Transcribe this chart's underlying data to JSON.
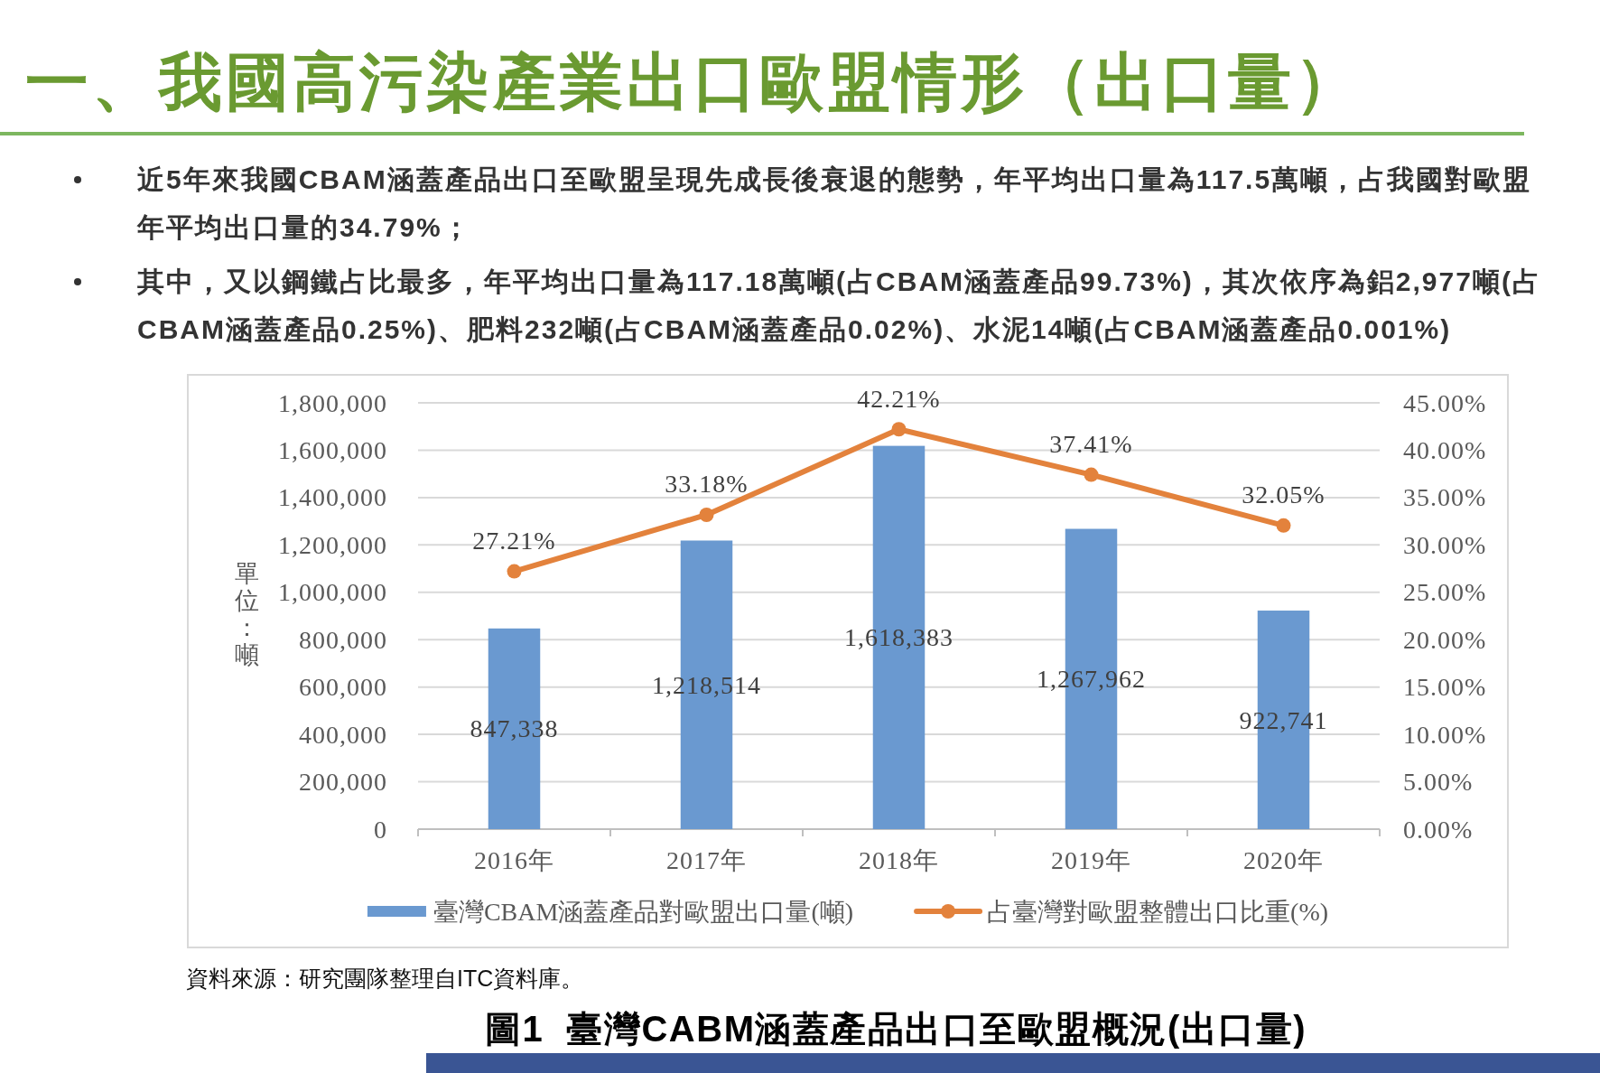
{
  "chart_data": {
    "type": "bar",
    "title": "一、我國高污染產業出口歐盟情形（出口量）",
    "annotations": [
      "近5年來我國CBAM涵蓋產品出口至歐盟呈現先成長後衰退的態勢，年平均出口量為117.5萬噸，占我國對歐盟年平均出口量的34.79%；",
      "其中，又以鋼鐵占比最多，年平均出口量為117.18萬噸(占CBAM涵蓋產品99.73%)，其次依序為鋁2,977噸(占CBAM涵蓋產品0.25%)、肥料232噸(占CBAM涵蓋產品0.02%)、水泥14噸(占CBAM涵蓋產品0.001%)",
      "資料來源：研究團隊整理自ITC資料庫。",
      "圖1  臺灣CABM涵蓋產品出口至歐盟概況(出口量)"
    ],
    "ylabel": "單位：噸",
    "categories": [
      "2016年",
      "2017年",
      "2018年",
      "2019年",
      "2020年"
    ],
    "series": [
      {
        "name": "臺灣CBAM涵蓋產品對歐盟出口量(噸)",
        "color": "#6a99d0",
        "values": [
          847338,
          1218514,
          1618383,
          1267962,
          922741
        ],
        "value_labels": [
          "847,338",
          "1,218,514",
          "1,618,383",
          "1,267,962",
          "922,741"
        ]
      },
      {
        "name": "占臺灣對歐盟整體出口比重(%)",
        "type": "line",
        "axis": "y2",
        "color": "#e3823c",
        "values": [
          27.21,
          33.18,
          42.21,
          37.41,
          32.05
        ],
        "value_labels": [
          "27.21%",
          "33.18%",
          "42.21%",
          "37.41%",
          "32.05%"
        ]
      }
    ],
    "ylim": [
      0,
      1800000
    ],
    "yticks": [
      0,
      {
        "value": 200000,
        "label": "200,000"
      },
      {
        "value": 400000,
        "label": "400,000"
      },
      {
        "value": 600000,
        "label": "600,000"
      },
      {
        "value": 800000,
        "label": "800,000"
      },
      {
        "value": 1000000,
        "label": "1,000,000"
      },
      {
        "value": 1200000,
        "label": "1,200,000"
      },
      {
        "value": 1400000,
        "label": "1,400,000"
      },
      {
        "value": 1600000,
        "label": "1,600,000"
      },
      {
        "value": 1800000,
        "label": "1,800,000"
      }
    ],
    "y2lim": [
      0,
      45
    ],
    "y2ticks": [
      {
        "value": 0,
        "label": "0.00%"
      },
      {
        "value": 5,
        "label": "5.00%"
      },
      {
        "value": 10,
        "label": "10.00%"
      },
      {
        "value": 15,
        "label": "15.00%"
      },
      {
        "value": 20,
        "label": "20.00%"
      },
      {
        "value": 25,
        "label": "25.00%"
      },
      {
        "value": 30,
        "label": "30.00%"
      },
      {
        "value": 35,
        "label": "35.00%"
      },
      {
        "value": 40,
        "label": "40.00%"
      },
      {
        "value": 45,
        "label": "45.00%"
      }
    ],
    "grid": "y",
    "legend": "bottom",
    "marker": "circle",
    "line_style": "solid"
  }
}
